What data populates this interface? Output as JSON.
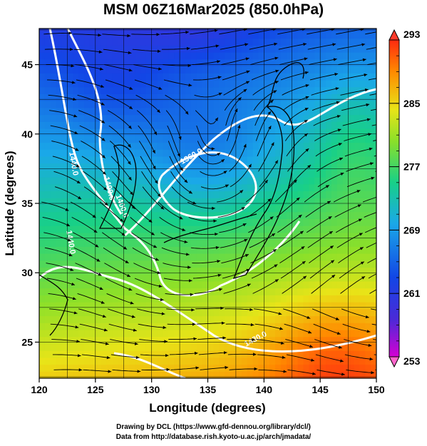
{
  "title": "MSM 06Z16Mar2025 (850.0hPa)",
  "credit_line1": "Drawing by DCL (https://www.gfd-dennou.org/library/dcl/)",
  "credit_line2": "Data from http://database.rish.kyoto-u.ac.jp/arch/jmadata/",
  "chart_data": {
    "type": "heatmap",
    "title": "MSM 06Z16Mar2025 (850.0hPa)",
    "xlabel": "Longitude (degrees)",
    "ylabel": "Latitude  (degrees)",
    "xlim": [
      120,
      150
    ],
    "ylim": [
      22.4,
      47.6
    ],
    "x_ticks": [
      120,
      125,
      130,
      135,
      140,
      145,
      150
    ],
    "y_ticks": [
      25,
      30,
      35,
      40,
      45
    ],
    "grid": true,
    "colorbar": {
      "min": 253,
      "max": 293,
      "tick_labels": [
        293,
        285,
        277,
        269,
        261,
        253
      ],
      "placement": "right"
    },
    "contour_labels": [
      "1440.0",
      "1400.0",
      "1360.0",
      "1400.0",
      "1440.0",
      "1480.0"
    ],
    "colors": {
      "cold": "#7a2ad0",
      "cool": "#1f5fe8",
      "mid": "#18c8a0",
      "warm": "#d8e020",
      "hot": "#ff7a00"
    }
  }
}
